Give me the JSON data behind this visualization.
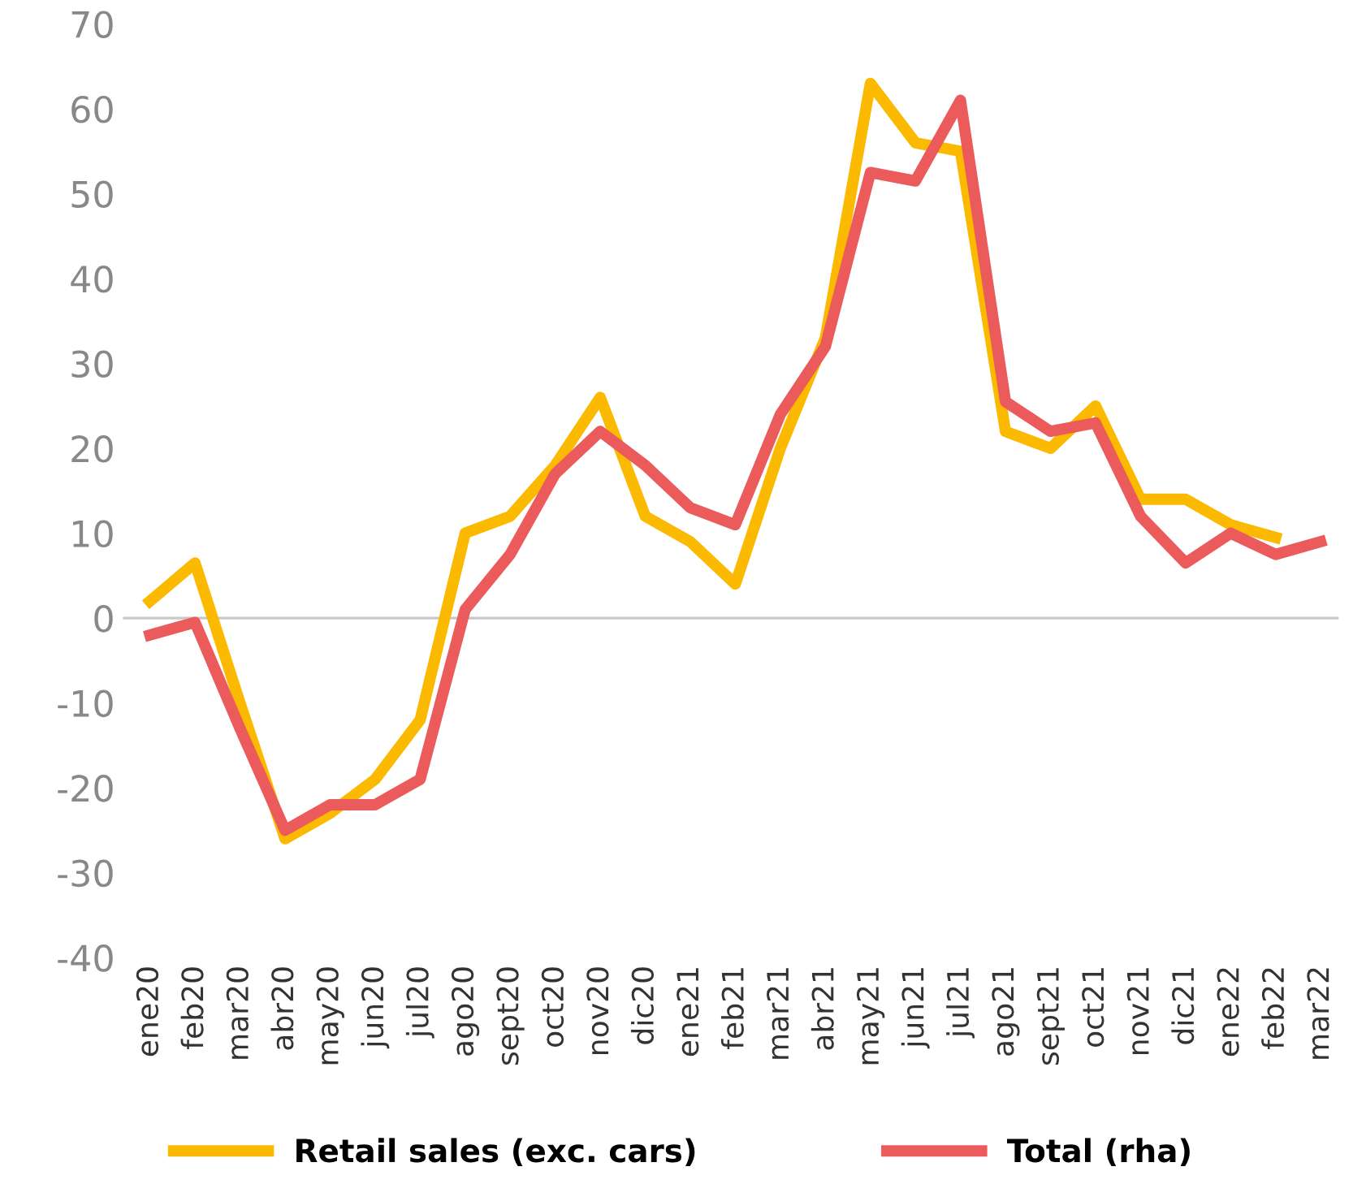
{
  "chart_data": {
    "type": "line",
    "categories": [
      "ene20",
      "feb20",
      "mar20",
      "abr20",
      "may20",
      "jun20",
      "jul20",
      "ago20",
      "sept20",
      "oct20",
      "nov20",
      "dic20",
      "ene21",
      "feb21",
      "mar21",
      "abr21",
      "may21",
      "jun21",
      "jul21",
      "ago21",
      "sept21",
      "oct21",
      "nov21",
      "dic21",
      "ene22",
      "feb22",
      "mar22"
    ],
    "series": [
      {
        "name": "Retail sales (exc. cars)",
        "color": "#fbb900",
        "values": [
          2,
          6.5,
          -10,
          -26,
          -23,
          -19,
          -12,
          10,
          12,
          18,
          26,
          12,
          9,
          4,
          20,
          33,
          63,
          56,
          55,
          22,
          20,
          25,
          14,
          14,
          11,
          9.5,
          null
        ]
      },
      {
        "name": "Total (rha)",
        "color": "#ec5b5b",
        "values": [
          -2,
          -0.5,
          -13,
          -25,
          -22,
          -22,
          -19,
          1,
          7.5,
          17,
          22,
          18,
          13,
          11,
          24,
          32,
          52.5,
          51.5,
          61,
          25.5,
          22,
          23,
          12,
          6.5,
          10,
          7.5,
          9
        ]
      }
    ],
    "ylim": [
      -40,
      70
    ],
    "yticks": [
      -40,
      -30,
      -20,
      -10,
      0,
      10,
      20,
      30,
      40,
      50,
      60,
      70
    ],
    "ref_lines": [
      {
        "axis": "y",
        "value": 0,
        "color": "#c8c8c8"
      }
    ],
    "grid": false,
    "legend": "bottom",
    "marker": "none",
    "line_style": "solid"
  }
}
